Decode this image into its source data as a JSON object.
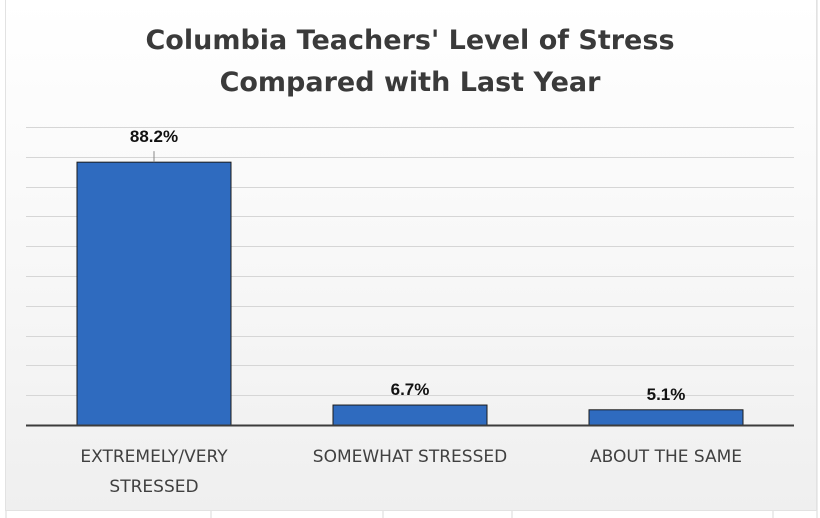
{
  "chart_data": {
    "type": "bar",
    "title": "Columbia Teachers' Level of Stress Compared with Last Year",
    "title_lines": [
      "Columbia Teachers' Level of Stress",
      "Compared with Last Year"
    ],
    "categories": [
      [
        "EXTREMELY/VERY",
        "STRESSED"
      ],
      [
        "SOMEWHAT STRESSED"
      ],
      [
        "ABOUT THE SAME"
      ]
    ],
    "values": [
      88.2,
      6.7,
      5.1
    ],
    "data_labels": [
      "88.2%",
      "6.7%",
      "5.1%"
    ],
    "unit": "%",
    "ylim": [
      0,
      100
    ],
    "y_axis_visible": false,
    "grid": true,
    "legend": "none",
    "colors": {
      "bar": "#2f6bbf",
      "bar_edge": "#1b1b1b",
      "gridline": "#d6d6d6",
      "axis": "#3c3c3c"
    }
  }
}
